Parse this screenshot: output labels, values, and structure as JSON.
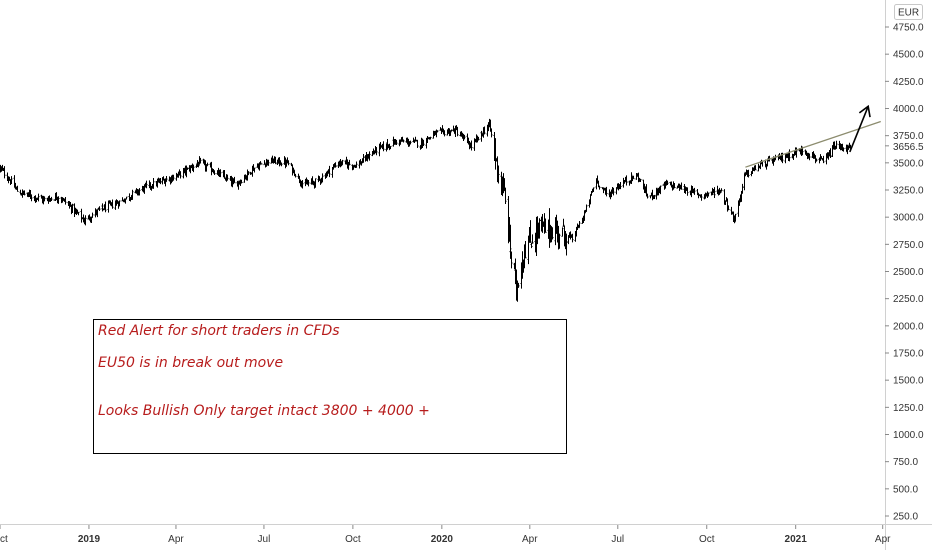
{
  "currency_label": "EUR",
  "last_price_label": "3656.5",
  "annotation": {
    "line1": "Red Alert for short traders in CFDs",
    "line2": "EU50 is in break out move",
    "line3": "Looks Bullish Only target intact 3800 + 4000 +"
  },
  "colors": {
    "candles": "#000000",
    "trendline": "#8c8c6e",
    "annotation_text": "#b71c1c",
    "axis_text": "#333333"
  },
  "chart_data": {
    "type": "candlestick",
    "instrument": "EU50",
    "currency": "EUR",
    "ylim": [
      150,
      4900
    ],
    "y_ticks": [
      250.0,
      500.0,
      750.0,
      1000.0,
      1250.0,
      1500.0,
      1750.0,
      2000.0,
      2250.0,
      2500.0,
      2750.0,
      3000.0,
      3250.0,
      3500.0,
      3750.0,
      4000.0,
      4250.0,
      4500.0,
      4750.0
    ],
    "y_tick_labels": [
      "250.0",
      "500.0",
      "750.0",
      "1000.0",
      "1250.0",
      "1500.0",
      "1750.0",
      "2000.0",
      "2250.0",
      "2500.0",
      "2750.0",
      "3000.0",
      "3250.0",
      "3500.0",
      "3750.0",
      "4000.0",
      "4250.0",
      "4500.0",
      "4750.0"
    ],
    "xlim": [
      "2018-10-01",
      "2021-05-22"
    ],
    "x_ticks": [
      {
        "date": "2018-10-01",
        "label": "Oct",
        "bold": false
      },
      {
        "date": "2019-01-01",
        "label": "2019",
        "bold": true
      },
      {
        "date": "2019-04-01",
        "label": "Apr",
        "bold": false
      },
      {
        "date": "2019-07-01",
        "label": "Jul",
        "bold": false
      },
      {
        "date": "2019-10-01",
        "label": "Oct",
        "bold": false
      },
      {
        "date": "2020-01-01",
        "label": "2020",
        "bold": true
      },
      {
        "date": "2020-04-01",
        "label": "Apr",
        "bold": false
      },
      {
        "date": "2020-07-01",
        "label": "Jul",
        "bold": false
      },
      {
        "date": "2020-10-01",
        "label": "Oct",
        "bold": false
      },
      {
        "date": "2021-01-01",
        "label": "2021",
        "bold": true
      },
      {
        "date": "2021-04-01",
        "label": "Apr",
        "bold": false
      }
    ],
    "last_price": 3656.5,
    "price_path": [
      [
        "2018-10-01",
        3450
      ],
      [
        "2018-10-20",
        3230
      ],
      [
        "2018-11-15",
        3160
      ],
      [
        "2018-12-01",
        3190
      ],
      [
        "2018-12-27",
        2970
      ],
      [
        "2019-01-10",
        3060
      ],
      [
        "2019-02-01",
        3140
      ],
      [
        "2019-03-01",
        3280
      ],
      [
        "2019-04-01",
        3380
      ],
      [
        "2019-04-25",
        3500
      ],
      [
        "2019-05-15",
        3400
      ],
      [
        "2019-06-01",
        3300
      ],
      [
        "2019-06-20",
        3450
      ],
      [
        "2019-07-05",
        3520
      ],
      [
        "2019-07-25",
        3500
      ],
      [
        "2019-08-10",
        3300
      ],
      [
        "2019-08-25",
        3330
      ],
      [
        "2019-09-15",
        3500
      ],
      [
        "2019-10-05",
        3480
      ],
      [
        "2019-10-25",
        3620
      ],
      [
        "2019-11-15",
        3700
      ],
      [
        "2019-12-10",
        3680
      ],
      [
        "2019-12-25",
        3770
      ],
      [
        "2020-01-15",
        3800
      ],
      [
        "2020-01-31",
        3650
      ],
      [
        "2020-02-19",
        3850
      ],
      [
        "2020-02-26",
        3500
      ],
      [
        "2020-03-05",
        3200
      ],
      [
        "2020-03-12",
        2650
      ],
      [
        "2020-03-18",
        2350
      ],
      [
        "2020-03-26",
        2700
      ],
      [
        "2020-04-10",
        2900
      ],
      [
        "2020-04-30",
        2870
      ],
      [
        "2020-05-15",
        2800
      ],
      [
        "2020-05-28",
        3050
      ],
      [
        "2020-06-08",
        3350
      ],
      [
        "2020-06-20",
        3200
      ],
      [
        "2020-07-05",
        3320
      ],
      [
        "2020-07-21",
        3380
      ],
      [
        "2020-08-01",
        3180
      ],
      [
        "2020-08-20",
        3300
      ],
      [
        "2020-09-05",
        3270
      ],
      [
        "2020-09-25",
        3200
      ],
      [
        "2020-10-15",
        3250
      ],
      [
        "2020-10-29",
        2980
      ],
      [
        "2020-11-09",
        3380
      ],
      [
        "2020-11-25",
        3480
      ],
      [
        "2020-12-15",
        3540
      ],
      [
        "2021-01-08",
        3620
      ],
      [
        "2021-01-29",
        3500
      ],
      [
        "2021-02-10",
        3650
      ],
      [
        "2021-02-26",
        3630
      ]
    ],
    "trendline": [
      [
        "2020-11-10",
        3460
      ],
      [
        "2021-03-30",
        3880
      ]
    ],
    "projection_arrow": [
      [
        "2021-02-26",
        3600
      ],
      [
        "2021-03-17",
        4020
      ]
    ],
    "annotations": [
      "Red Alert for short traders in CFDs",
      "EU50 is in break out move",
      "Looks Bullish Only target intact 3800 + 4000 +"
    ]
  }
}
